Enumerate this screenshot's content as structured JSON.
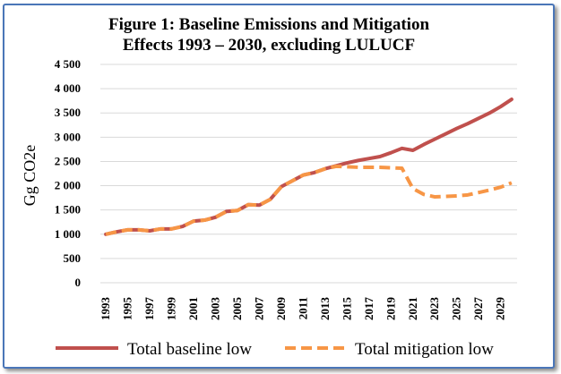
{
  "chart_data": {
    "type": "line",
    "title_line1": "Figure 1: Baseline Emissions and Mitigation",
    "title_line2": "Effects 1993 – 2030, excluding LULUCF",
    "xlabel": "",
    "ylabel": "Gg CO2e",
    "ylim": [
      0,
      4500
    ],
    "yticks": [
      0,
      500,
      1000,
      1500,
      2000,
      2500,
      3000,
      3500,
      4000,
      4500
    ],
    "ytick_labels": [
      "0",
      "500",
      "1 000",
      "1 500",
      "2 000",
      "2 500",
      "3 000",
      "3 500",
      "4 000",
      "4 500"
    ],
    "x": [
      1993,
      1994,
      1995,
      1996,
      1997,
      1998,
      1999,
      2000,
      2001,
      2002,
      2003,
      2004,
      2005,
      2006,
      2007,
      2008,
      2009,
      2010,
      2011,
      2012,
      2013,
      2014,
      2015,
      2016,
      2017,
      2018,
      2019,
      2020,
      2021,
      2022,
      2023,
      2024,
      2025,
      2026,
      2027,
      2028,
      2029,
      2030
    ],
    "xtick_labels": [
      "1993",
      "1995",
      "1997",
      "1999",
      "2001",
      "2003",
      "2005",
      "2007",
      "2009",
      "2011",
      "2013",
      "2015",
      "2017",
      "2019",
      "2021",
      "2023",
      "2025",
      "2027",
      "2029"
    ],
    "grid": true,
    "legend_position": "bottom",
    "series": [
      {
        "name": "Total baseline low",
        "color": "#c0504d",
        "style": "solid",
        "values": [
          1000,
          1050,
          1090,
          1090,
          1070,
          1110,
          1110,
          1160,
          1270,
          1290,
          1350,
          1470,
          1490,
          1610,
          1600,
          1720,
          1980,
          2100,
          2220,
          2270,
          2350,
          2410,
          2470,
          2520,
          2560,
          2600,
          2680,
          2770,
          2730,
          2850,
          2960,
          3070,
          3180,
          3280,
          3390,
          3500,
          3630,
          3780
        ]
      },
      {
        "name": "Total mitigation low",
        "color": "#f79646",
        "style": "dashed",
        "values": [
          1000,
          1050,
          1090,
          1090,
          1070,
          1110,
          1110,
          1160,
          1270,
          1290,
          1350,
          1470,
          1490,
          1610,
          1600,
          1720,
          1980,
          2100,
          2220,
          2270,
          2350,
          2400,
          2390,
          2380,
          2380,
          2380,
          2370,
          2360,
          1940,
          1820,
          1770,
          1780,
          1790,
          1810,
          1860,
          1910,
          1970,
          2060
        ]
      }
    ]
  }
}
